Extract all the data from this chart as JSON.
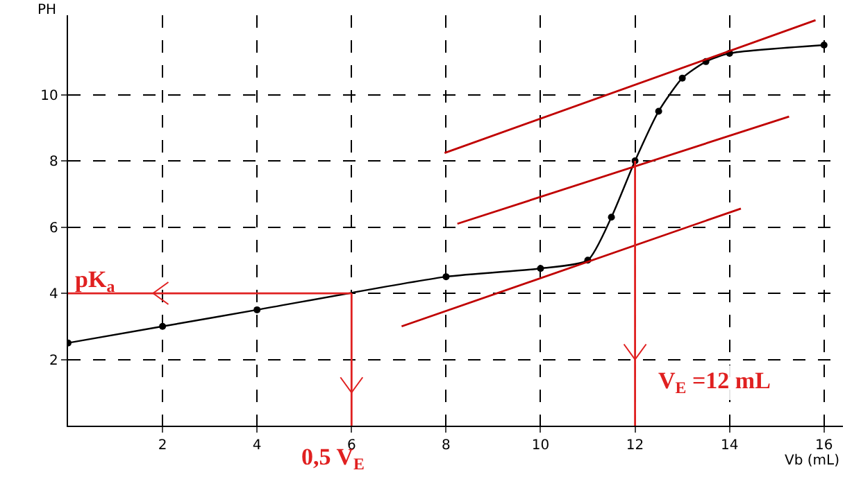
{
  "chart_data": {
    "type": "line",
    "xlabel": "Vb (mL)",
    "ylabel": "PH",
    "xlim": [
      0,
      16.4
    ],
    "ylim": [
      0,
      12.4
    ],
    "xticks": [
      2,
      4,
      6,
      8,
      10,
      12,
      14,
      16
    ],
    "yticks": [
      2,
      4,
      6,
      8,
      10
    ],
    "grid": true,
    "line_style": "solid",
    "series": [
      {
        "color": "#000000",
        "marker": "circle",
        "x": [
          0,
          2,
          4,
          8,
          10,
          11,
          11.5,
          12,
          12.5,
          13,
          13.5,
          14,
          16
        ],
        "values": [
          2.5,
          3,
          3.5,
          4.5,
          4.75,
          5,
          6.3,
          8,
          9.5,
          10.5,
          11,
          11.25,
          11.5
        ]
      },
      {
        "color": "#c00000",
        "marker": "none",
        "x": [
          7.97,
          15.82
        ],
        "values": [
          8.24,
          12.25
        ]
      },
      {
        "color": "#c00000",
        "marker": "none",
        "x": [
          8.24,
          15.26
        ],
        "values": [
          6.1,
          9.34
        ]
      },
      {
        "color": "#c00000",
        "marker": "none",
        "x": [
          7.06,
          14.24
        ],
        "values": [
          3,
          6.56
        ]
      },
      {
        "color": "#e02020",
        "marker": "none",
        "x": [
          6,
          0
        ],
        "values": [
          4,
          4
        ]
      },
      {
        "color": "#e02020",
        "marker": "none",
        "x": [
          6,
          6
        ],
        "values": [
          4,
          0
        ]
      },
      {
        "color": "#e02020",
        "marker": "none",
        "x": [
          12,
          12
        ],
        "values": [
          8,
          0
        ]
      }
    ],
    "annotations": [
      "pK$_{a}$",
      "0,5 V$_{E}$",
      "V$_{E}$ =12 mL"
    ]
  }
}
